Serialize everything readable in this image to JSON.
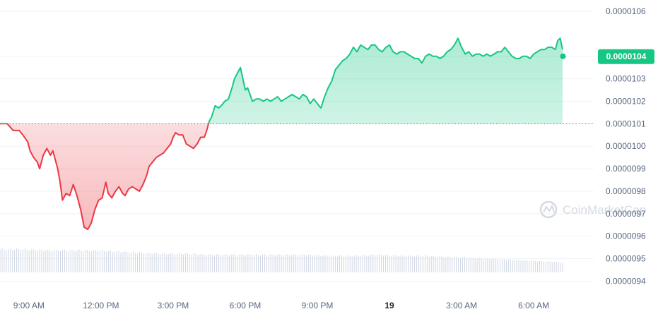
{
  "watermark": "CoinMarketCap",
  "current_price_label": "0.0000104",
  "colors": {
    "up": "#16c784",
    "down": "#ea3943",
    "grid": "#eff2f5",
    "volume": "#cfd6e4",
    "baseline": "#808a9d"
  },
  "chart_data": {
    "type": "line",
    "baseline": 1.01e-05,
    "ylim": [
      9.37e-06,
      1.06e-05
    ],
    "yticks": [
      "0.0000106",
      "0.0000104",
      "0.0000103",
      "0.0000102",
      "0.0000101",
      "0.0000100",
      "0.0000099",
      "0.0000098",
      "0.0000097",
      "0.0000096",
      "0.0000095",
      "0.0000094"
    ],
    "xticks": [
      {
        "label": "9:00 AM",
        "t": 9
      },
      {
        "label": "12:00 PM",
        "t": 12
      },
      {
        "label": "3:00 PM",
        "t": 15
      },
      {
        "label": "6:00 PM",
        "t": 18
      },
      {
        "label": "9:00 PM",
        "t": 21
      },
      {
        "label": "19",
        "t": 24,
        "bold": true
      },
      {
        "label": "3:00 AM",
        "t": 27
      },
      {
        "label": "6:00 AM",
        "t": 30
      }
    ],
    "xlim": [
      7.8,
      32.2
    ],
    "price": [
      [
        7.8,
        1.01e-05
      ],
      [
        8.1,
        1.01e-05
      ],
      [
        8.35,
        1.007e-05
      ],
      [
        8.6,
        1.007e-05
      ],
      [
        8.75,
        1.005e-05
      ],
      [
        8.95,
        1.002e-05
      ],
      [
        9.05,
        9.98e-06
      ],
      [
        9.2,
        9.95e-06
      ],
      [
        9.35,
        9.93e-06
      ],
      [
        9.45,
        9.9e-06
      ],
      [
        9.6,
        9.96e-06
      ],
      [
        9.75,
        9.99e-06
      ],
      [
        9.9,
        9.96e-06
      ],
      [
        10.0,
        9.98e-06
      ],
      [
        10.1,
        9.94e-06
      ],
      [
        10.2,
        9.9e-06
      ],
      [
        10.3,
        9.84e-06
      ],
      [
        10.4,
        9.76e-06
      ],
      [
        10.55,
        9.79e-06
      ],
      [
        10.7,
        9.78e-06
      ],
      [
        10.85,
        9.83e-06
      ],
      [
        11.0,
        9.78e-06
      ],
      [
        11.15,
        9.72e-06
      ],
      [
        11.3,
        9.64e-06
      ],
      [
        11.45,
        9.63e-06
      ],
      [
        11.6,
        9.66e-06
      ],
      [
        11.75,
        9.72e-06
      ],
      [
        11.9,
        9.76e-06
      ],
      [
        12.05,
        9.77e-06
      ],
      [
        12.2,
        9.84e-06
      ],
      [
        12.3,
        9.79e-06
      ],
      [
        12.45,
        9.77e-06
      ],
      [
        12.6,
        9.8e-06
      ],
      [
        12.75,
        9.82e-06
      ],
      [
        12.9,
        9.79e-06
      ],
      [
        13.0,
        9.78e-06
      ],
      [
        13.15,
        9.81e-06
      ],
      [
        13.3,
        9.82e-06
      ],
      [
        13.45,
        9.81e-06
      ],
      [
        13.6,
        9.8e-06
      ],
      [
        13.75,
        9.83e-06
      ],
      [
        13.9,
        9.87e-06
      ],
      [
        14.0,
        9.91e-06
      ],
      [
        14.15,
        9.93e-06
      ],
      [
        14.3,
        9.95e-06
      ],
      [
        14.45,
        9.96e-06
      ],
      [
        14.6,
        9.97e-06
      ],
      [
        14.75,
        9.99e-06
      ],
      [
        14.9,
        1.001e-05
      ],
      [
        15.0,
        1.004e-05
      ],
      [
        15.1,
        1.006e-05
      ],
      [
        15.25,
        1.005e-05
      ],
      [
        15.4,
        1.005e-05
      ],
      [
        15.55,
        1.001e-05
      ],
      [
        15.7,
        1e-05
      ],
      [
        15.85,
        9.99e-06
      ],
      [
        16.0,
        1.001e-05
      ],
      [
        16.15,
        1.004e-05
      ],
      [
        16.3,
        1.004e-05
      ],
      [
        16.4,
        1.007e-05
      ],
      [
        16.5,
        1.011e-05
      ],
      [
        16.6,
        1.013e-05
      ],
      [
        16.75,
        1.018e-05
      ],
      [
        16.9,
        1.017e-05
      ],
      [
        17.0,
        1.018e-05
      ],
      [
        17.15,
        1.02e-05
      ],
      [
        17.3,
        1.021e-05
      ],
      [
        17.45,
        1.026e-05
      ],
      [
        17.55,
        1.03e-05
      ],
      [
        17.7,
        1.033e-05
      ],
      [
        17.8,
        1.035e-05
      ],
      [
        17.9,
        1.03e-05
      ],
      [
        18.0,
        1.025e-05
      ],
      [
        18.1,
        1.026e-05
      ],
      [
        18.2,
        1.023e-05
      ],
      [
        18.3,
        1.02e-05
      ],
      [
        18.45,
        1.021e-05
      ],
      [
        18.6,
        1.021e-05
      ],
      [
        18.75,
        1.02e-05
      ],
      [
        18.9,
        1.021e-05
      ],
      [
        19.05,
        1.02e-05
      ],
      [
        19.2,
        1.021e-05
      ],
      [
        19.35,
        1.022e-05
      ],
      [
        19.5,
        1.02e-05
      ],
      [
        19.65,
        1.021e-05
      ],
      [
        19.8,
        1.022e-05
      ],
      [
        19.95,
        1.023e-05
      ],
      [
        20.1,
        1.022e-05
      ],
      [
        20.25,
        1.021e-05
      ],
      [
        20.4,
        1.023e-05
      ],
      [
        20.55,
        1.022e-05
      ],
      [
        20.7,
        1.019e-05
      ],
      [
        20.85,
        1.021e-05
      ],
      [
        21.0,
        1.019e-05
      ],
      [
        21.15,
        1.017e-05
      ],
      [
        21.3,
        1.022e-05
      ],
      [
        21.45,
        1.026e-05
      ],
      [
        21.6,
        1.029e-05
      ],
      [
        21.75,
        1.034e-05
      ],
      [
        21.9,
        1.036e-05
      ],
      [
        22.05,
        1.038e-05
      ],
      [
        22.2,
        1.039e-05
      ],
      [
        22.35,
        1.041e-05
      ],
      [
        22.5,
        1.044e-05
      ],
      [
        22.65,
        1.042e-05
      ],
      [
        22.8,
        1.045e-05
      ],
      [
        22.95,
        1.044e-05
      ],
      [
        23.1,
        1.043e-05
      ],
      [
        23.25,
        1.045e-05
      ],
      [
        23.4,
        1.045e-05
      ],
      [
        23.55,
        1.043e-05
      ],
      [
        23.7,
        1.042e-05
      ],
      [
        23.85,
        1.044e-05
      ],
      [
        24.0,
        1.045e-05
      ],
      [
        24.15,
        1.042e-05
      ],
      [
        24.3,
        1.041e-05
      ],
      [
        24.45,
        1.042e-05
      ],
      [
        24.6,
        1.042e-05
      ],
      [
        24.75,
        1.041e-05
      ],
      [
        24.9,
        1.04e-05
      ],
      [
        25.05,
        1.039e-05
      ],
      [
        25.2,
        1.039e-05
      ],
      [
        25.35,
        1.037e-05
      ],
      [
        25.5,
        1.04e-05
      ],
      [
        25.65,
        1.041e-05
      ],
      [
        25.8,
        1.04e-05
      ],
      [
        25.95,
        1.04e-05
      ],
      [
        26.1,
        1.039e-05
      ],
      [
        26.25,
        1.04e-05
      ],
      [
        26.4,
        1.042e-05
      ],
      [
        26.55,
        1.043e-05
      ],
      [
        26.7,
        1.045e-05
      ],
      [
        26.85,
        1.048e-05
      ],
      [
        27.0,
        1.044e-05
      ],
      [
        27.15,
        1.041e-05
      ],
      [
        27.3,
        1.042e-05
      ],
      [
        27.45,
        1.04e-05
      ],
      [
        27.6,
        1.041e-05
      ],
      [
        27.75,
        1.041e-05
      ],
      [
        27.9,
        1.04e-05
      ],
      [
        28.05,
        1.041e-05
      ],
      [
        28.2,
        1.04e-05
      ],
      [
        28.35,
        1.041e-05
      ],
      [
        28.5,
        1.042e-05
      ],
      [
        28.65,
        1.042e-05
      ],
      [
        28.8,
        1.044e-05
      ],
      [
        28.95,
        1.042e-05
      ],
      [
        29.1,
        1.04e-05
      ],
      [
        29.25,
        1.039e-05
      ],
      [
        29.4,
        1.039e-05
      ],
      [
        29.55,
        1.04e-05
      ],
      [
        29.7,
        1.04e-05
      ],
      [
        29.85,
        1.039e-05
      ],
      [
        30.0,
        1.041e-05
      ],
      [
        30.15,
        1.042e-05
      ],
      [
        30.3,
        1.043e-05
      ],
      [
        30.45,
        1.043e-05
      ],
      [
        30.6,
        1.044e-05
      ],
      [
        30.75,
        1.044e-05
      ],
      [
        30.9,
        1.043e-05
      ],
      [
        31.0,
        1.047e-05
      ],
      [
        31.1,
        1.048e-05
      ],
      [
        31.2,
        1.043e-05
      ]
    ],
    "volume": [
      [
        7.8,
        21
      ],
      [
        8.8,
        21
      ],
      [
        9.8,
        20
      ],
      [
        10.8,
        20
      ],
      [
        11.8,
        20
      ],
      [
        12.8,
        19
      ],
      [
        13.5,
        18
      ],
      [
        14.5,
        17
      ],
      [
        15.5,
        17
      ],
      [
        16.5,
        16
      ],
      [
        17.5,
        16
      ],
      [
        18.5,
        16
      ],
      [
        19.5,
        16
      ],
      [
        20.5,
        16
      ],
      [
        21.5,
        15
      ],
      [
        22.5,
        15
      ],
      [
        23.5,
        16
      ],
      [
        24.5,
        15
      ],
      [
        25.5,
        15
      ],
      [
        26.5,
        14
      ],
      [
        27.5,
        13
      ],
      [
        28.5,
        12
      ],
      [
        29.5,
        11
      ],
      [
        30.5,
        10
      ],
      [
        31.2,
        9
      ]
    ]
  }
}
